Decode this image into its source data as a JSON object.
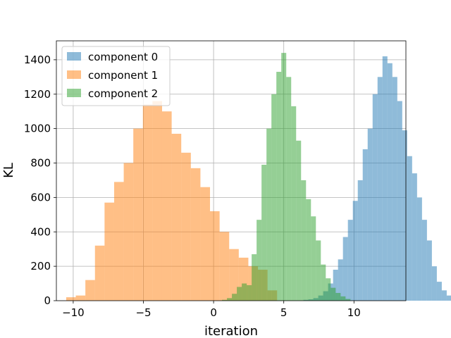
{
  "chart_data": {
    "type": "histogram",
    "xlabel": "iteration",
    "ylabel": "KL",
    "xlim": [
      -11.2,
      13.7
    ],
    "ylim": [
      0,
      1510
    ],
    "xticks": [
      -10,
      -5,
      0,
      5,
      10
    ],
    "yticks": [
      0,
      200,
      400,
      600,
      800,
      1000,
      1200,
      1400
    ],
    "grid": true,
    "legend_position": "upper-left",
    "series": [
      {
        "name": "component 0",
        "color": "#1f77b4",
        "alpha": 0.5,
        "bin_start": 6.4,
        "bin_width": 0.352,
        "counts": [
          5,
          8,
          15,
          30,
          55,
          100,
          180,
          240,
          370,
          470,
          580,
          700,
          880,
          1000,
          1200,
          1300,
          1420,
          1380,
          1300,
          1160,
          990,
          840,
          740,
          600,
          470,
          350,
          200,
          110,
          60,
          30,
          10,
          5
        ]
      },
      {
        "name": "component 1",
        "color": "#ff7f0e",
        "alpha": 0.5,
        "bin_start": -10.5,
        "bin_width": 0.683,
        "counts": [
          20,
          30,
          120,
          320,
          570,
          690,
          800,
          1000,
          1140,
          1160,
          1100,
          970,
          860,
          770,
          660,
          520,
          400,
          300,
          250,
          200,
          180,
          60
        ]
      },
      {
        "name": "component 2",
        "color": "#2ca02c",
        "alpha": 0.5,
        "bin_start": 0.6,
        "bin_width": 0.352,
        "counts": [
          5,
          15,
          40,
          80,
          100,
          90,
          270,
          470,
          790,
          1000,
          1200,
          1330,
          1440,
          1300,
          1130,
          930,
          700,
          590,
          490,
          350,
          210,
          130,
          75,
          45,
          25,
          10
        ]
      }
    ]
  }
}
